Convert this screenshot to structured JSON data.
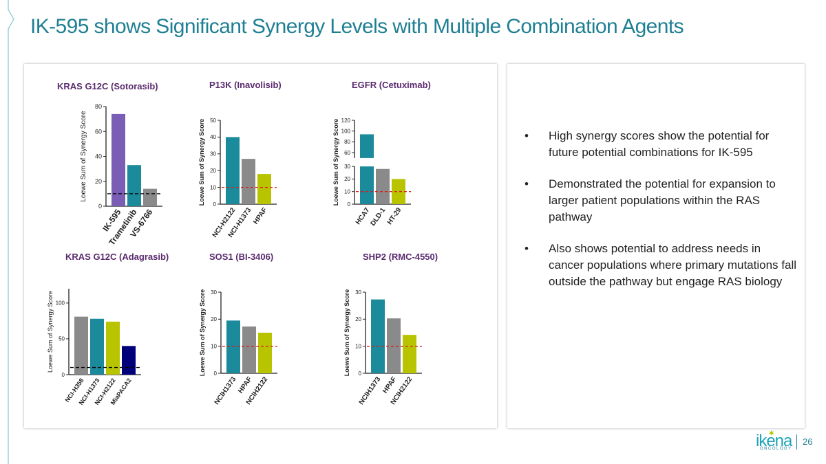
{
  "slide": {
    "title": "IK-595 shows Significant Synergy Levels with Multiple Combination Agents",
    "page_number": "26",
    "logo_word": "ikena",
    "logo_sub": "ONCOLOGY"
  },
  "colors": {
    "teal": "#1b8a9b",
    "gray": "#8a8a8a",
    "lime": "#b8c400",
    "purple": "#7a5db5",
    "navy": "#00007a",
    "ref_red": "#d62020",
    "ref_black": "#000000"
  },
  "bullets": [
    "High synergy scores show the potential for future potential combinations for IK-595",
    "Demonstrated the potential for expansion to larger patient populations within the RAS pathway",
    "Also shows potential to address needs in cancer populations where primary mutations fall outside the pathway but engage RAS biology"
  ],
  "chart_data": [
    {
      "id": "c1",
      "type": "bar",
      "title": "KRAS G12C (Sotorasib)",
      "ylabel": "Loewe Sum of Synergy Score",
      "categories": [
        "IK-595",
        "Trametinib",
        "VS-6766"
      ],
      "values": [
        74,
        33,
        14
      ],
      "bar_colors": [
        "#7a5db5",
        "#1b8a9b",
        "#8a8a8a"
      ],
      "ylim": [
        0,
        80
      ],
      "yticks": [
        0,
        20,
        40,
        60,
        80
      ],
      "reference_line": 10,
      "reference_color": "#000000"
    },
    {
      "id": "c2",
      "type": "bar",
      "title": "P13K (Inavolisib)",
      "ylabel": "Loewe Sum of Synergy Score",
      "categories": [
        "NCI-H2122",
        "NCI-H1373",
        "HPAF"
      ],
      "values": [
        40,
        27,
        18
      ],
      "bar_colors": [
        "#1b8a9b",
        "#8a8a8a",
        "#b8c400"
      ],
      "ylim": [
        0,
        50
      ],
      "yticks": [
        0,
        10,
        20,
        30,
        40,
        50
      ],
      "reference_line": 10,
      "reference_color": "#d62020"
    },
    {
      "id": "c3",
      "type": "bar",
      "title": "EGFR (Cetuximab)",
      "ylabel": "Loewe Sum of Synergy Score",
      "categories": [
        "HCA7",
        "DLD-1",
        "HT-29"
      ],
      "values": [
        94,
        28,
        20
      ],
      "bar_colors": [
        "#1b8a9b",
        "#8a8a8a",
        "#b8c400"
      ],
      "ylim": [
        0,
        120
      ],
      "yticks": [
        0,
        10,
        20,
        30,
        60,
        80,
        100,
        120
      ],
      "axis_break": [
        30,
        50
      ],
      "reference_line": 10,
      "reference_color": "#d62020"
    },
    {
      "id": "c4",
      "type": "bar",
      "title": "KRAS G12C (Adagrasib)",
      "ylabel": "Loewe Sum of Synergy Score",
      "categories": [
        "NCI-H358",
        "NCI-H1373",
        "NCI-H2122",
        "MiaPACA2"
      ],
      "values": [
        81,
        78,
        74,
        40
      ],
      "bar_colors": [
        "#8a8a8a",
        "#1b8a9b",
        "#b8c400",
        "#00007a"
      ],
      "ylim": [
        0,
        120
      ],
      "yticks": [
        0,
        50,
        100
      ],
      "reference_line": 10,
      "reference_color": "#000000"
    },
    {
      "id": "c5",
      "type": "bar",
      "title": "SOS1 (BI-3406)",
      "ylabel": "Loewe Sum of Synergy Score",
      "categories": [
        "NCIH1373",
        "HPAF",
        "NCIH2122"
      ],
      "values": [
        19.5,
        17.3,
        15
      ],
      "bar_colors": [
        "#1b8a9b",
        "#8a8a8a",
        "#b8c400"
      ],
      "ylim": [
        0,
        30
      ],
      "yticks": [
        0,
        10,
        20,
        30
      ],
      "reference_line": 10,
      "reference_color": "#d62020"
    },
    {
      "id": "c6",
      "type": "bar",
      "title": "SHP2 (RMC-4550)",
      "ylabel": "Loewe Sum of Synergy Score",
      "categories": [
        "NCIH1373",
        "HPAF",
        "NCIH2122"
      ],
      "values": [
        27.3,
        20.3,
        14.2
      ],
      "bar_colors": [
        "#1b8a9b",
        "#8a8a8a",
        "#b8c400"
      ],
      "ylim": [
        0,
        30
      ],
      "yticks": [
        0,
        10,
        20,
        30
      ],
      "reference_line": 10,
      "reference_color": "#d62020"
    }
  ]
}
